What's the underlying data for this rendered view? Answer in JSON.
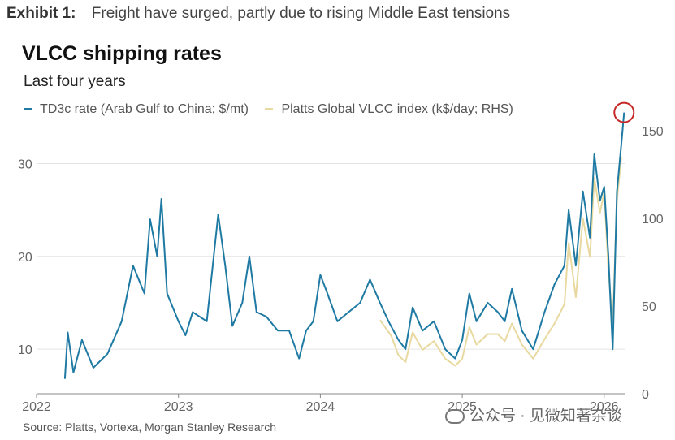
{
  "exhibit": {
    "label": "Exhibit 1:",
    "caption": "Freight have surged, partly due to rising Middle East tensions"
  },
  "chart_data": {
    "type": "line",
    "title": "VLCC shipping rates",
    "subtitle": "Last four years",
    "source": "Source: Platts, Vortexa, Morgan Stanley Research",
    "x_ticks": [
      "2022",
      "2023",
      "2024",
      "2025",
      "2026"
    ],
    "x_range": [
      2022.0,
      2026.15
    ],
    "left_axis": {
      "ticks": [
        10,
        20,
        30
      ],
      "range": [
        5.2,
        34.5
      ]
    },
    "right_axis": {
      "ticks": [
        0,
        50,
        100,
        150
      ],
      "range": [
        0,
        155
      ]
    },
    "grid": true,
    "legend_position": "top-left",
    "series": [
      {
        "name": "TD3c rate (Arab Gulf to China; $/mt)",
        "axis": "left",
        "color": "#1f7aa3",
        "points": [
          [
            2022.2,
            6.8
          ],
          [
            2022.22,
            11.8
          ],
          [
            2022.26,
            7.5
          ],
          [
            2022.32,
            11
          ],
          [
            2022.4,
            8
          ],
          [
            2022.5,
            9.5
          ],
          [
            2022.6,
            13
          ],
          [
            2022.68,
            19
          ],
          [
            2022.76,
            16
          ],
          [
            2022.8,
            24
          ],
          [
            2022.85,
            20
          ],
          [
            2022.88,
            26.2
          ],
          [
            2022.92,
            16
          ],
          [
            2023.0,
            13
          ],
          [
            2023.05,
            11.5
          ],
          [
            2023.1,
            14
          ],
          [
            2023.2,
            13
          ],
          [
            2023.28,
            24.5
          ],
          [
            2023.33,
            19
          ],
          [
            2023.38,
            12.5
          ],
          [
            2023.45,
            15
          ],
          [
            2023.5,
            20
          ],
          [
            2023.55,
            14
          ],
          [
            2023.62,
            13.5
          ],
          [
            2023.7,
            12
          ],
          [
            2023.78,
            12
          ],
          [
            2023.85,
            9
          ],
          [
            2023.9,
            12
          ],
          [
            2023.95,
            13
          ],
          [
            2024.0,
            18
          ],
          [
            2024.05,
            16
          ],
          [
            2024.12,
            13
          ],
          [
            2024.2,
            14
          ],
          [
            2024.28,
            15
          ],
          [
            2024.35,
            17.5
          ],
          [
            2024.42,
            15
          ],
          [
            2024.48,
            13
          ],
          [
            2024.55,
            11
          ],
          [
            2024.6,
            10
          ],
          [
            2024.65,
            14.5
          ],
          [
            2024.72,
            12
          ],
          [
            2024.8,
            13
          ],
          [
            2024.88,
            10
          ],
          [
            2024.95,
            9
          ],
          [
            2025.0,
            11
          ],
          [
            2025.05,
            16
          ],
          [
            2025.1,
            13
          ],
          [
            2025.18,
            15
          ],
          [
            2025.25,
            14
          ],
          [
            2025.3,
            13
          ],
          [
            2025.35,
            16.5
          ],
          [
            2025.42,
            12
          ],
          [
            2025.5,
            10
          ],
          [
            2025.58,
            14
          ],
          [
            2025.65,
            17
          ],
          [
            2025.72,
            19
          ],
          [
            2025.75,
            25
          ],
          [
            2025.8,
            19
          ],
          [
            2025.85,
            27
          ],
          [
            2025.9,
            22
          ],
          [
            2025.93,
            31
          ],
          [
            2025.97,
            26
          ],
          [
            2026.0,
            27.5
          ],
          [
            2026.03,
            20
          ],
          [
            2026.06,
            10
          ],
          [
            2026.09,
            27
          ],
          [
            2026.12,
            32
          ],
          [
            2026.14,
            35.5
          ]
        ]
      },
      {
        "name": "Platts Global VLCC index (k$/day; RHS)",
        "axis": "right",
        "color": "#e8d9a0",
        "points": [
          [
            2024.42,
            42
          ],
          [
            2024.5,
            33
          ],
          [
            2024.55,
            22
          ],
          [
            2024.6,
            18
          ],
          [
            2024.65,
            35
          ],
          [
            2024.72,
            25
          ],
          [
            2024.8,
            30
          ],
          [
            2024.88,
            20
          ],
          [
            2024.95,
            16
          ],
          [
            2025.0,
            20
          ],
          [
            2025.05,
            38
          ],
          [
            2025.1,
            28
          ],
          [
            2025.18,
            34
          ],
          [
            2025.25,
            34
          ],
          [
            2025.3,
            30
          ],
          [
            2025.35,
            40
          ],
          [
            2025.42,
            28
          ],
          [
            2025.5,
            20
          ],
          [
            2025.58,
            31
          ],
          [
            2025.65,
            40
          ],
          [
            2025.72,
            51
          ],
          [
            2025.75,
            86
          ],
          [
            2025.8,
            55
          ],
          [
            2025.85,
            100
          ],
          [
            2025.9,
            78
          ],
          [
            2025.93,
            123
          ],
          [
            2025.97,
            103
          ],
          [
            2026.0,
            115
          ],
          [
            2026.03,
            70
          ],
          [
            2026.06,
            40
          ],
          [
            2026.09,
            110
          ],
          [
            2026.12,
            135
          ]
        ]
      }
    ]
  },
  "watermark": "公众号 · 见微知著杂谈"
}
